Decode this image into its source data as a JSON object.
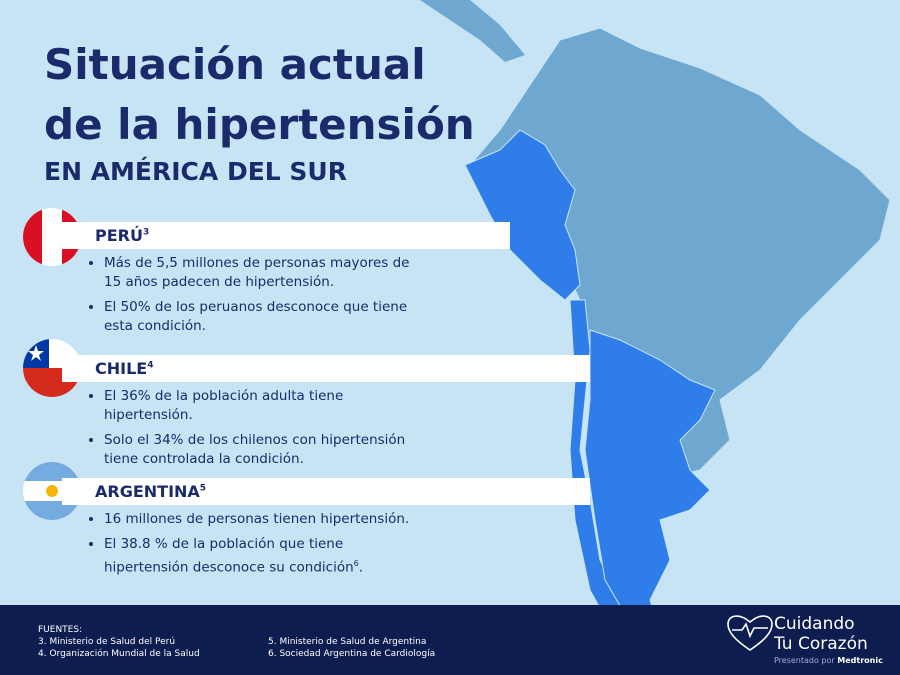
{
  "header": {
    "title_lines": [
      "Situación actual",
      "de la hipertensión"
    ],
    "subtitle": "EN AMÉRICA DEL SUR"
  },
  "countries": [
    {
      "name": "PERÚ",
      "ref": "3",
      "bullets": [
        {
          "text": "Más de 5,5 millones de personas mayores de 15 años padecen de hipertensión."
        },
        {
          "text": "El 50% de los peruanos desconoce que tiene esta condición."
        }
      ]
    },
    {
      "name": "CHILE",
      "ref": "4",
      "bullets": [
        {
          "text": "El 36% de la población adulta tiene hipertensión."
        },
        {
          "text": "Solo el 34% de los chilenos con hipertensión tiene controlada la condición."
        }
      ]
    },
    {
      "name": "ARGENTINA",
      "ref": "5",
      "bullets": [
        {
          "text": "16 millones de personas tienen hipertensión."
        },
        {
          "text": "El 38.8 % de la población que tiene hipertensión desconoce su condición",
          "sup": "6",
          "after": "."
        }
      ]
    }
  ],
  "footer": {
    "label": "FUENTES:",
    "sources": [
      "3. Ministerio de Salud del Perú",
      "4. Organización Mundial de la Salud",
      "5. Ministerio de Salud de Argentina",
      "6. Sociedad Argentina de Cardiología"
    ]
  },
  "logo": {
    "line1": "Cuidando",
    "line2": "Tu Corazón",
    "presented": "Presentado por",
    "brand": "Medtronic"
  }
}
